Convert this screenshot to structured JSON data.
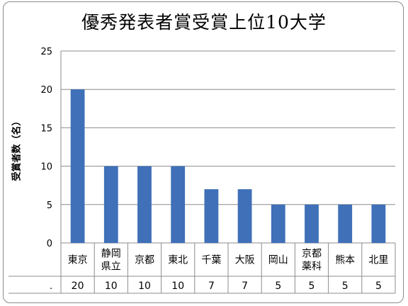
{
  "chart_data": {
    "type": "bar",
    "title": "優秀発表者賞受賞上位10大学",
    "ylabel": "受賞者数（名）",
    "xlabel": "",
    "categories": [
      [
        "東京"
      ],
      [
        "静岡",
        "県立"
      ],
      [
        "京都"
      ],
      [
        "東北"
      ],
      [
        "千葉"
      ],
      [
        "大阪"
      ],
      [
        "岡山"
      ],
      [
        "京都",
        "薬科"
      ],
      [
        "熊本"
      ],
      [
        "北里"
      ]
    ],
    "values": [
      20,
      10,
      10,
      10,
      7,
      7,
      5,
      5,
      5,
      5
    ],
    "data_table_values": [
      "20",
      "10",
      "10",
      "10",
      "7",
      "7",
      "5",
      "5",
      "5",
      "5"
    ],
    "data_table_row_marker": ".",
    "ylim": [
      0,
      25
    ],
    "yticks": [
      0,
      5,
      10,
      15,
      20,
      25
    ],
    "grid": true,
    "bar_color": "#3f70b8",
    "legend": "none"
  }
}
